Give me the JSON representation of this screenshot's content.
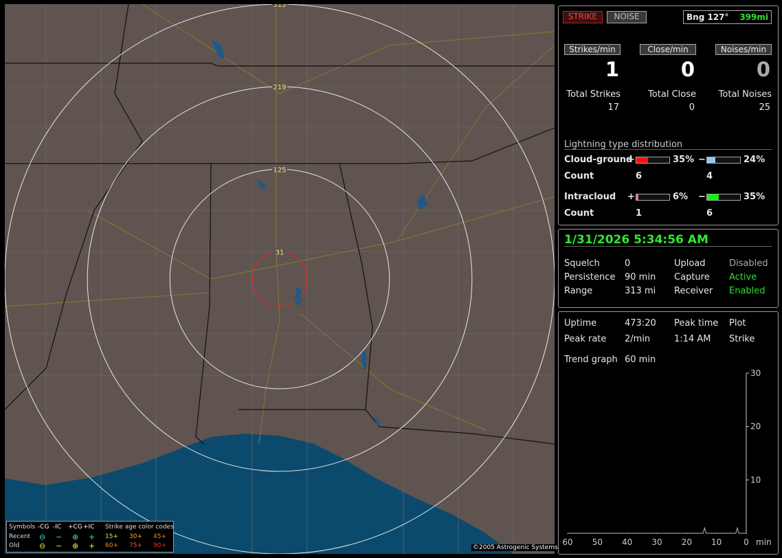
{
  "header": {
    "strike": "STRIKE",
    "noise": "NOISE",
    "bearing": "Bng 127°",
    "distance": "399mi"
  },
  "rates": {
    "labels": [
      "Strikes/min",
      "Close/min",
      "Noises/min"
    ],
    "values": [
      1,
      0,
      0
    ]
  },
  "totals": {
    "labels": [
      "Total Strikes",
      "Total Close",
      "Total Noises"
    ],
    "values": [
      17,
      0,
      25
    ]
  },
  "distribution": {
    "title": "Lightning type distribution",
    "count_label": "Count",
    "plus": "+",
    "minus": "−",
    "rows": [
      {
        "name": "Cloud-ground",
        "plus": {
          "value": 35,
          "label": "35%",
          "color": "#ff1010"
        },
        "minus": {
          "value": 24,
          "label": "24%",
          "color": "#8ccaf5"
        },
        "plus_count": 6,
        "minus_count": 4
      },
      {
        "name": "Intracloud",
        "plus": {
          "value": 6,
          "label": "6%",
          "color": "#f06aa8"
        },
        "minus": {
          "value": 35,
          "label": "35%",
          "color": "#10f010"
        },
        "plus_count": 1,
        "minus_count": 6
      }
    ]
  },
  "clock": "1/31/2026 5:34:56 AM",
  "status": {
    "rows": [
      [
        "Squelch",
        0,
        "Upload",
        "Disabled"
      ],
      [
        "Persistence",
        "90 min",
        "Capture",
        "Active"
      ],
      [
        "Range",
        "313 mi",
        "Receiver",
        "Enabled"
      ]
    ]
  },
  "stats": {
    "rows": [
      [
        "Uptime",
        "473:20",
        "Peak time",
        "Plot"
      ],
      [
        "Peak rate",
        "2/min",
        "1:14 AM",
        "Strike"
      ],
      [
        "Trend graph",
        "60 min"
      ]
    ]
  },
  "chart_data": {
    "type": "line",
    "xlim": [
      60,
      0
    ],
    "xticks": [
      60,
      50,
      40,
      30,
      20,
      10,
      0
    ],
    "xlabel": "min",
    "ylim": [
      0,
      30
    ],
    "yticks": [
      10,
      20,
      30
    ],
    "color": "#bbbbbb",
    "x": [
      60,
      14.5,
      14,
      13.5,
      3.5,
      3,
      2.5,
      0
    ],
    "values": [
      0,
      0,
      1,
      0,
      0,
      1,
      0,
      0
    ]
  },
  "map": {
    "rings": [
      313,
      219,
      125,
      31
    ],
    "copyright": "©2005 Astrogenic Systems",
    "legend": {
      "symbols": "Symbols",
      "types": [
        "-CG",
        "-IC",
        "+CG",
        "+IC"
      ],
      "age_title": "Strike age color codes",
      "recent": "Recent",
      "old": "Old",
      "recent_ages": [
        "15+",
        "30+",
        "45+"
      ],
      "old_ages": [
        "60+",
        "75+",
        "90+"
      ]
    }
  }
}
